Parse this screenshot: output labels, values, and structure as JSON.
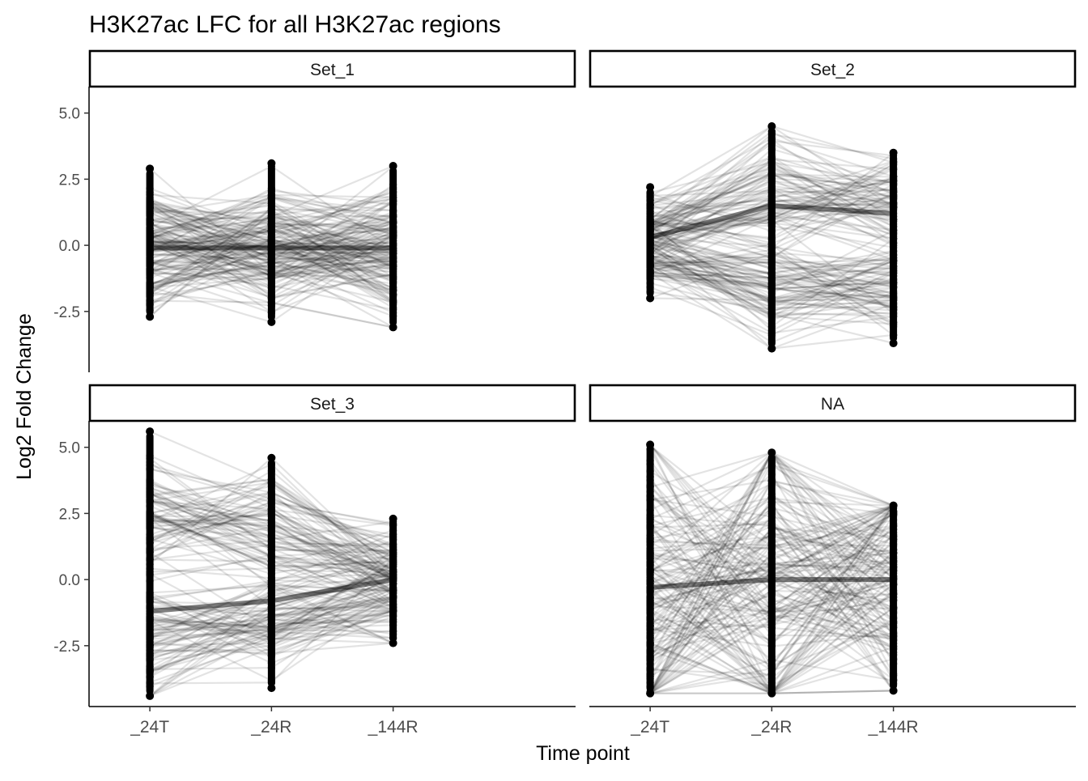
{
  "chart_data": {
    "type": "line",
    "title": "H3K27ac LFC  for all H3K27ac regions",
    "xlabel": "Time point",
    "ylabel": "Log2 Fold Change",
    "categories": [
      "_24T",
      "_24R",
      "_144R"
    ],
    "yticks": [
      5.0,
      2.5,
      0.0,
      -2.5
    ],
    "ytick_labels": [
      "5.0",
      "2.5",
      "0.0",
      "-2.5"
    ],
    "ylim": [
      -4.8,
      6.0
    ],
    "grid": false,
    "legend": "none",
    "line_color": "#000000",
    "panels": [
      {
        "name": "Set_1",
        "trajectory_groups": [
          {
            "center": [
              -0.1,
              -0.1,
              -0.1
            ],
            "spread": [
              1.3,
              1.4,
              1.4
            ]
          }
        ],
        "point_range": {
          "_24T": [
            -2.7,
            2.9
          ],
          "_24R": [
            -2.9,
            3.1
          ],
          "_144R": [
            -3.1,
            3.0
          ]
        },
        "median": [
          -0.1,
          -0.1,
          -0.1
        ]
      },
      {
        "name": "Set_2",
        "trajectory_groups": [
          {
            "center": [
              0.8,
              2.0,
              1.6
            ],
            "spread": [
              0.8,
              1.2,
              0.9
            ]
          },
          {
            "center": [
              -0.5,
              -1.7,
              -1.6
            ],
            "spread": [
              0.7,
              1.0,
              0.9
            ]
          }
        ],
        "point_range": {
          "_24T": [
            -2.0,
            2.2
          ],
          "_24R": [
            -3.9,
            4.5
          ],
          "_144R": [
            -3.7,
            3.5
          ]
        },
        "median": [
          0.3,
          1.5,
          1.2
        ]
      },
      {
        "name": "Set_3",
        "trajectory_groups": [
          {
            "center": [
              2.3,
              2.1,
              0.4
            ],
            "spread": [
              1.2,
              1.2,
              0.9
            ]
          },
          {
            "center": [
              -2.3,
              -1.7,
              -0.6
            ],
            "spread": [
              1.2,
              1.1,
              0.9
            ]
          }
        ],
        "point_range": {
          "_24T": [
            -4.4,
            5.6
          ],
          "_24R": [
            -4.1,
            4.6
          ],
          "_144R": [
            -2.4,
            2.3
          ]
        },
        "median": [
          -1.2,
          -0.8,
          0.0
        ]
      },
      {
        "name": "NA",
        "trajectory_groups": [
          {
            "center": [
              -0.3,
              0.0,
              0.0
            ],
            "spread": [
              3.5,
              3.3,
              2.5
            ]
          }
        ],
        "point_range": {
          "_24T": [
            -4.3,
            5.1
          ],
          "_24R": [
            -4.3,
            4.8
          ],
          "_144R": [
            -4.2,
            2.8
          ]
        },
        "median": [
          -0.3,
          0.0,
          0.0
        ]
      }
    ]
  }
}
